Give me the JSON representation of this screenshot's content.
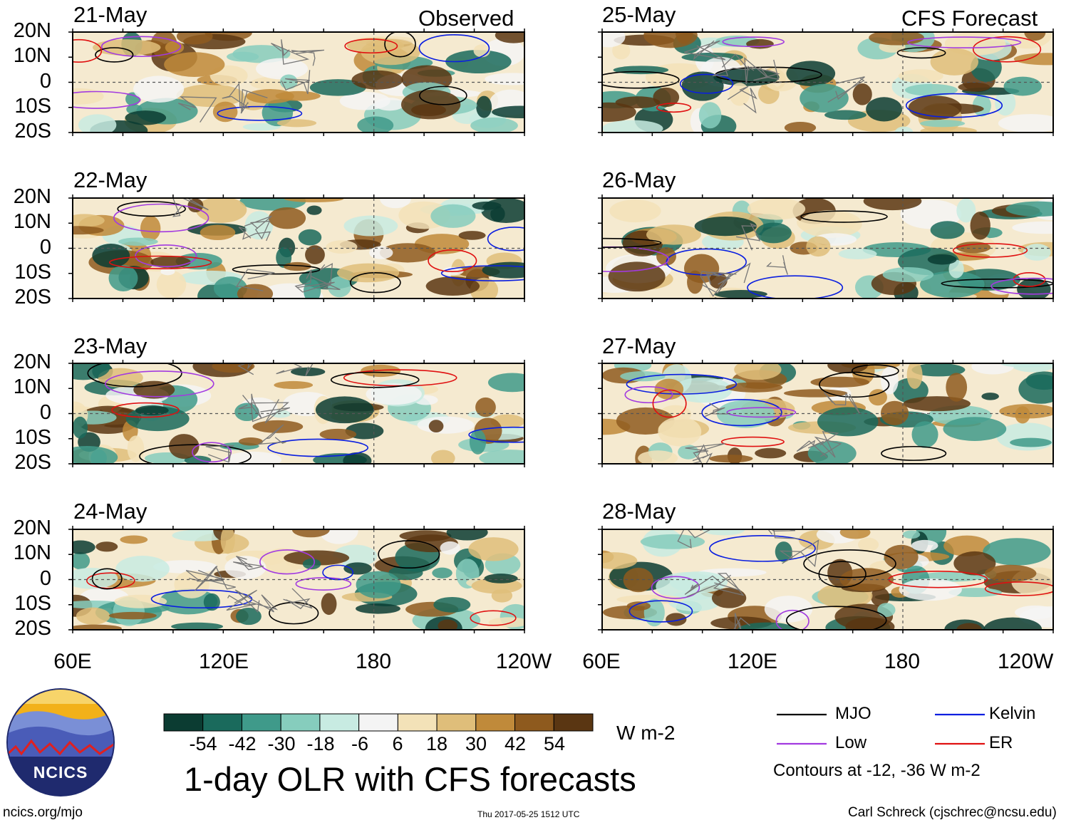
{
  "chart_data": {
    "type": "heatmap",
    "title": "1-day OLR with CFS forecasts",
    "units": "W m-2",
    "colorbar": {
      "ticks": [
        "-54",
        "-42",
        "-30",
        "-18",
        "-6",
        "6",
        "18",
        "30",
        "42",
        "54"
      ],
      "colors": [
        "#0b3c32",
        "#1a6a5c",
        "#3f9a8a",
        "#86cdbd",
        "#c8ebe2",
        "#f4f4f4",
        "#f3e2b8",
        "#dfbe7a",
        "#c08a3a",
        "#8e5a1e",
        "#5a3612"
      ]
    },
    "column_titles": {
      "left": "Observed",
      "right": "CFS Forecast"
    },
    "panels_observed": [
      "21-May",
      "22-May",
      "23-May",
      "24-May"
    ],
    "panels_forecast": [
      "25-May",
      "26-May",
      "27-May",
      "28-May"
    ],
    "y_axis": {
      "ticks": [
        "20N",
        "10N",
        "0",
        "10S",
        "20S"
      ],
      "range": [
        -20,
        20
      ]
    },
    "x_axis": {
      "ticks": [
        "60E",
        "120E",
        "180",
        "120W"
      ],
      "range_deg_east": [
        60,
        240
      ]
    },
    "legend": [
      {
        "label": "MJO",
        "color": "#000000"
      },
      {
        "label": "Kelvin",
        "color": "#0a1ee0"
      },
      {
        "label": "Low",
        "color": "#a23ae0"
      },
      {
        "label": "ER",
        "color": "#e01010"
      }
    ],
    "contour_note": "Contours at -12, -36 W m-2"
  },
  "footer": {
    "url": "ncics.org/mjo",
    "timestamp": "Thu 2017-05-25 1512 UTC",
    "author": "Carl Schreck (cjschrec@ncsu.edu)"
  },
  "logo": {
    "text": "NCICS"
  }
}
